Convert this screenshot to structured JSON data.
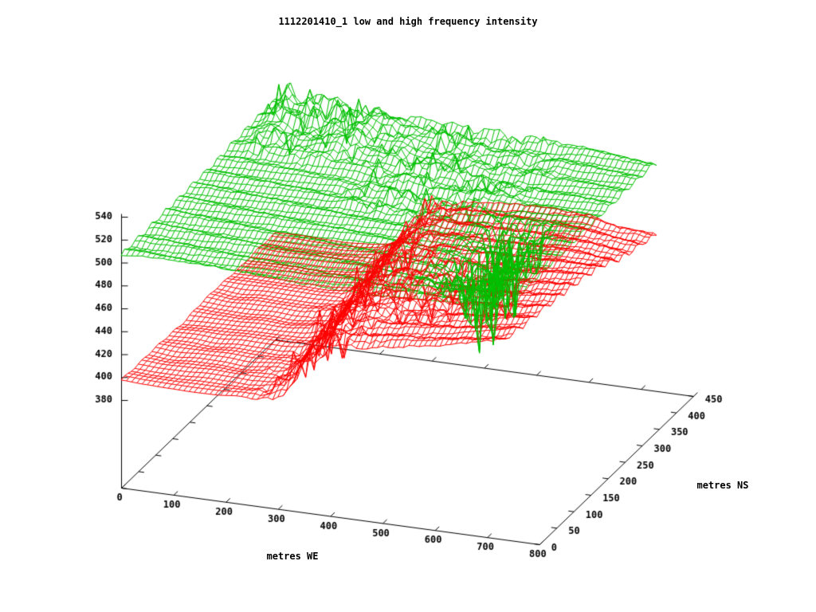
{
  "page": {
    "background": "#ffffff"
  },
  "chart_data": {
    "type": "surface3d-wireframe",
    "title": "1112201410_1 low and high frequency intensity",
    "xlabel": "metres WE",
    "ylabel": "metres NS",
    "zlabel": "",
    "x_range": [
      0,
      800
    ],
    "y_range": [
      0,
      450
    ],
    "z_range": [
      380,
      540
    ],
    "x_ticks": [
      0,
      100,
      200,
      300,
      400,
      500,
      600,
      700,
      800
    ],
    "y_ticks": [
      0,
      50,
      100,
      150,
      200,
      250,
      300,
      350,
      400,
      450
    ],
    "z_ticks": [
      380,
      400,
      420,
      440,
      460,
      480,
      500,
      520,
      540
    ],
    "grid": false,
    "legend": "none",
    "colors": {
      "axis": "#000000",
      "text": "#000000",
      "background": "#ffffff"
    },
    "mesh": {
      "x_max": 730,
      "y_max": 450,
      "step": 10
    },
    "series": [
      {
        "name": "high frequency intensity",
        "color": "#00c000",
        "draw_order": 1,
        "surface": {
          "kind": "upper",
          "base_grid": {
            "x": [
              0,
              120,
              240,
              360,
              480,
              600,
              730
            ],
            "y": [
              0,
              90,
              180,
              270,
              360,
              450
            ],
            "z": [
              [
                507,
                506,
                505,
                504.5,
                503.5,
                503,
                504
              ],
              [
                507,
                506,
                505,
                504.5,
                503,
                500.5,
                503.5
              ],
              [
                507.5,
                506.5,
                505.5,
                505,
                503.5,
                502,
                503.5
              ],
              [
                508.5,
                507.5,
                506.5,
                505.5,
                504.5,
                504,
                504
              ],
              [
                511,
                513.5,
                512.5,
                508.5,
                505.5,
                505,
                504.5
              ],
              [
                512,
                515.5,
                514.5,
                510,
                506.5,
                508,
                503.5
              ]
            ]
          },
          "mountains": {
            "x_fade": [
              5,
              40,
              170,
              300
            ],
            "y_rise": [
              280,
              370
            ],
            "amplitude": 11,
            "spike_amplitude": 20
          },
          "rough_band": {
            "x_fade": [
              230,
              300,
              500,
              580
            ],
            "y_rise": [
              170,
              260
            ],
            "amplitude": 6,
            "spike_amplitude": 14
          },
          "rough_patch": {
            "x_fade": [
              420,
              470,
              560,
              620
            ],
            "y_fade": [
              210,
              260,
              380,
              430
            ],
            "amplitude": 5
          },
          "spike_cluster": {
            "x_fade": [
              545,
              580,
              640,
              672
            ],
            "y_fade": [
              50,
              95,
              220,
              265
            ],
            "dip": 5,
            "spike_depth": 64,
            "density": 0.58
          },
          "waves": {
            "amplitude": 2.2,
            "y_freq": 0.16,
            "x_freq": 0.011
          },
          "micro_noise": 0.9
        }
      },
      {
        "name": "low frequency intensity",
        "color": "#ff0000",
        "draw_order": 2,
        "surface": {
          "kind": "lower",
          "plateau": {
            "z": 396.3,
            "noise": 1.2,
            "wave_amp": 0.8
          },
          "cliff": {
            "center_front": 332,
            "back_shift": 0.165,
            "wobble": 8,
            "width": 20
          },
          "east_grid": {
            "x": [
              240,
              330,
              420,
              510,
              600,
              660,
              730
            ],
            "y": [
              0,
              90,
              180,
              270,
              360,
              450
            ],
            "z": [
              [
                430,
                449,
                455,
                460,
                465,
                470,
                476
              ],
              [
                432,
                450,
                455,
                459,
                463,
                467,
                472
              ],
              [
                434,
                450,
                454,
                457,
                460,
                464,
                468
              ],
              [
                434,
                449,
                452,
                454,
                457,
                460,
                462
              ],
              [
                432,
                447,
                450,
                451,
                453,
                453,
                448
              ],
              [
                430,
                444,
                447,
                448,
                448,
                442,
                441
              ]
            ]
          },
          "ridge_chaos": {
            "offset": 40,
            "sigma": 75,
            "amplitude": 11,
            "spike_amplitude": 28
          },
          "mid_patch": {
            "x_fade": [
              350,
              400,
              530,
              580
            ],
            "y_fade": [
              60,
              110,
              250,
              300
            ],
            "amplitude": 6,
            "spike_depth": 18
          },
          "east_spikes": {
            "x_fade": [
              470,
              510,
              630,
              660
            ],
            "y_fade": [
              80,
              120,
              230,
              270
            ],
            "spike_depth": 22
          },
          "waves": {
            "amplitude": 2.4,
            "y_freq": 0.16,
            "x_freq": 0.01
          },
          "micro_noise": 1.1
        }
      }
    ]
  }
}
